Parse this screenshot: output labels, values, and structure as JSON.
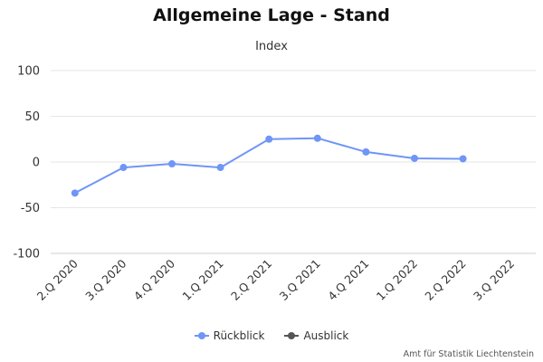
{
  "chart_data": {
    "type": "line",
    "title": "Allgemeine Lage - Stand",
    "subtitle": "Index",
    "categories": [
      "2.Q 2020",
      "3.Q 2020",
      "4.Q 2020",
      "1.Q 2021",
      "2.Q 2021",
      "3.Q 2021",
      "4.Q 2021",
      "1.Q 2022",
      "2.Q 2022",
      "3.Q 2022"
    ],
    "ylim": [
      -100,
      100
    ],
    "yticks": [
      100,
      50,
      0,
      -50,
      -100
    ],
    "grid": true,
    "legend_position": "bottom-center",
    "series": [
      {
        "name": "Rückblick",
        "color": "#6f95f7",
        "values": [
          -34,
          -6,
          -2,
          -6,
          25,
          26,
          11,
          4,
          3.5,
          null
        ]
      },
      {
        "name": "Ausblick",
        "color": "#555555",
        "values": [
          null,
          null,
          null,
          null,
          null,
          null,
          null,
          null,
          null,
          null
        ]
      }
    ]
  },
  "credit": "Amt für Statistik Liechtenstein"
}
